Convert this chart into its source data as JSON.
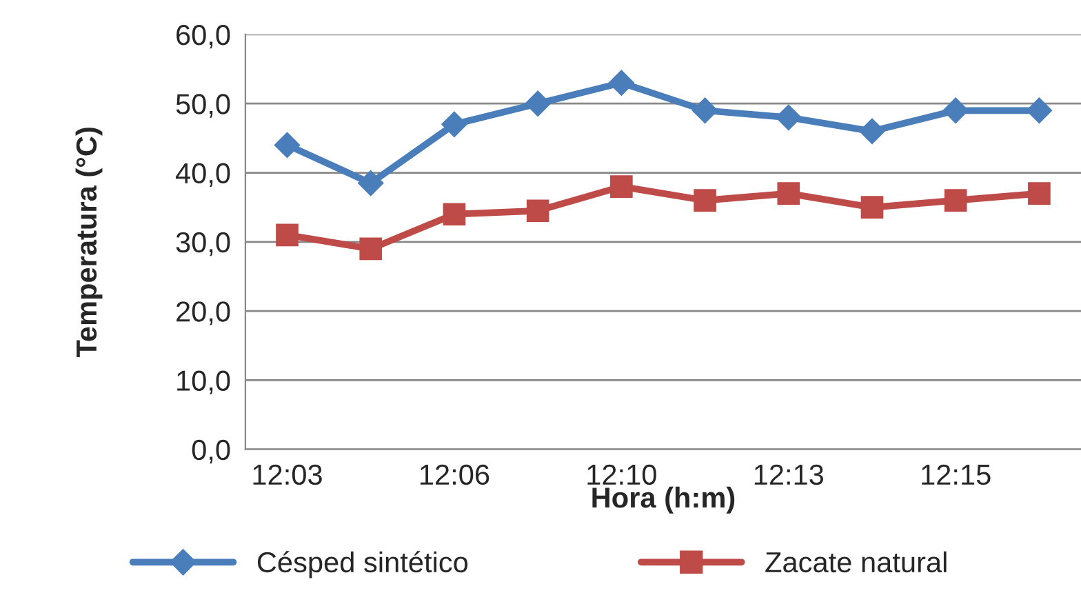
{
  "chart_data": {
    "type": "line",
    "xlabel": "Hora (h:m)",
    "ylabel": "Temperatura (°C)",
    "categories": [
      "12:03",
      null,
      "12:06",
      null,
      "12:10",
      null,
      "12:13",
      null,
      "12:15",
      null
    ],
    "series": [
      {
        "name": "Césped sintético",
        "color": "#4a7ebb",
        "marker": "diamond",
        "values": [
          44,
          38.5,
          47,
          50,
          53,
          49,
          48,
          46,
          49,
          49
        ]
      },
      {
        "name": "Zacate natural",
        "color": "#be4b48",
        "marker": "square",
        "values": [
          31,
          29,
          34,
          34.5,
          38,
          36,
          37,
          35,
          36,
          37
        ]
      }
    ],
    "ylim": [
      0,
      60
    ],
    "yticks": [
      {
        "value": 0,
        "label": "0,0"
      },
      {
        "value": 10,
        "label": "10,0"
      },
      {
        "value": 20,
        "label": "20,0"
      },
      {
        "value": 30,
        "label": "30,0"
      },
      {
        "value": 40,
        "label": "40,0"
      },
      {
        "value": 50,
        "label": "50,0"
      },
      {
        "value": 60,
        "label": "60,0"
      }
    ],
    "grid": "y",
    "legend": "bottom",
    "line_style": "solid"
  }
}
